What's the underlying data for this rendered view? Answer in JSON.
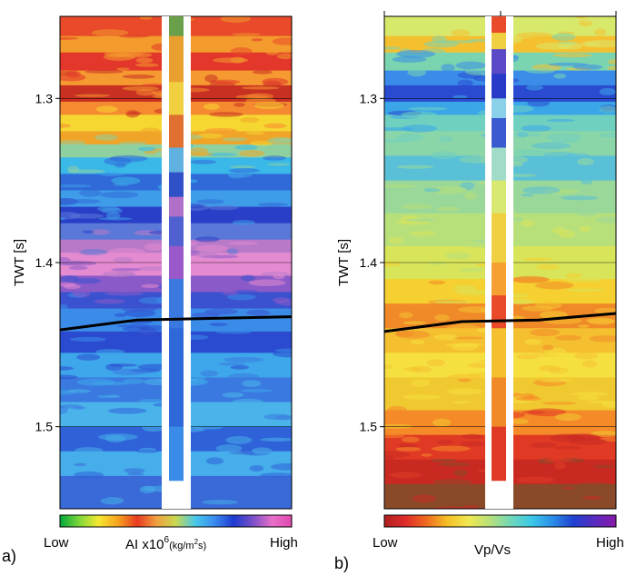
{
  "panels": [
    {
      "id": "a",
      "panel_label": "a)",
      "ylabel": "TWT [s]",
      "y_ticks": [
        1.3,
        1.4,
        1.5
      ],
      "y_range": [
        1.25,
        1.55
      ],
      "colorbar": {
        "low_label": "Low",
        "high_label": "High",
        "title_main": "AI x10",
        "title_sup": "6",
        "title_unit_open": "(kg/m",
        "title_unit_sup": "2",
        "title_unit_close": "s)",
        "stops": [
          "#00a83a",
          "#7fd63a",
          "#f5e830",
          "#f6a320",
          "#e83a20",
          "#f0a040",
          "#c8d850",
          "#48c8e8",
          "#3a8cf0",
          "#1e3ad0",
          "#7a50c8",
          "#e870c8",
          "#e048b0"
        ]
      },
      "horizon_twt": [
        1.441,
        1.435,
        1.434,
        1.433
      ],
      "well_bottom_twt": 1.533,
      "bands": [
        {
          "from": 1.25,
          "to": 1.262,
          "color": "#e84a2a"
        },
        {
          "from": 1.262,
          "to": 1.272,
          "color": "#f39b2c"
        },
        {
          "from": 1.272,
          "to": 1.283,
          "color": "#e2372a"
        },
        {
          "from": 1.283,
          "to": 1.292,
          "color": "#f59a30"
        },
        {
          "from": 1.292,
          "to": 1.302,
          "color": "#c83022"
        },
        {
          "from": 1.302,
          "to": 1.31,
          "color": "#f58a30"
        },
        {
          "from": 1.31,
          "to": 1.32,
          "color": "#f6d732"
        },
        {
          "from": 1.32,
          "to": 1.328,
          "color": "#f0a528"
        },
        {
          "from": 1.328,
          "to": 1.336,
          "color": "#8fd0a0"
        },
        {
          "from": 1.336,
          "to": 1.346,
          "color": "#3ab8e8"
        },
        {
          "from": 1.346,
          "to": 1.356,
          "color": "#2f6ad8"
        },
        {
          "from": 1.356,
          "to": 1.366,
          "color": "#3e9ce8"
        },
        {
          "from": 1.366,
          "to": 1.376,
          "color": "#2a3fc8"
        },
        {
          "from": 1.376,
          "to": 1.386,
          "color": "#5a78d8"
        },
        {
          "from": 1.386,
          "to": 1.394,
          "color": "#b87ac8"
        },
        {
          "from": 1.394,
          "to": 1.408,
          "color": "#e48ad0"
        },
        {
          "from": 1.408,
          "to": 1.418,
          "color": "#8a5ac8"
        },
        {
          "from": 1.418,
          "to": 1.428,
          "color": "#3a52d0"
        },
        {
          "from": 1.428,
          "to": 1.442,
          "color": "#3a8ce8"
        },
        {
          "from": 1.442,
          "to": 1.455,
          "color": "#2a4ad0"
        },
        {
          "from": 1.455,
          "to": 1.47,
          "color": "#3ea6ea"
        },
        {
          "from": 1.47,
          "to": 1.485,
          "color": "#3a7ae0"
        },
        {
          "from": 1.485,
          "to": 1.5,
          "color": "#4ab4ea"
        },
        {
          "from": 1.5,
          "to": 1.515,
          "color": "#2f62d8"
        },
        {
          "from": 1.515,
          "to": 1.53,
          "color": "#46aeea"
        },
        {
          "from": 1.53,
          "to": 1.55,
          "color": "#3a6ad8"
        }
      ],
      "well_strip": [
        {
          "from": 1.25,
          "to": 1.262,
          "color": "#6aa04a"
        },
        {
          "from": 1.262,
          "to": 1.29,
          "color": "#e8a030"
        },
        {
          "from": 1.29,
          "to": 1.31,
          "color": "#f0d040"
        },
        {
          "from": 1.31,
          "to": 1.33,
          "color": "#e07030"
        },
        {
          "from": 1.33,
          "to": 1.345,
          "color": "#60b0e0"
        },
        {
          "from": 1.345,
          "to": 1.36,
          "color": "#3050c8"
        },
        {
          "from": 1.36,
          "to": 1.372,
          "color": "#b070c8"
        },
        {
          "from": 1.372,
          "to": 1.39,
          "color": "#5060d0"
        },
        {
          "from": 1.39,
          "to": 1.41,
          "color": "#9a58c8"
        },
        {
          "from": 1.41,
          "to": 1.44,
          "color": "#3a7ae0"
        },
        {
          "from": 1.44,
          "to": 1.5,
          "color": "#2f68d8"
        },
        {
          "from": 1.5,
          "to": 1.533,
          "color": "#3a8ce8"
        }
      ]
    },
    {
      "id": "b",
      "panel_label": "b)",
      "ylabel": "TWT [s]",
      "y_ticks": [
        1.3,
        1.4,
        1.5
      ],
      "y_range": [
        1.25,
        1.55
      ],
      "colorbar": {
        "low_label": "Low",
        "high_label": "High",
        "title_main": "Vp/Vs",
        "stops": [
          "#b02020",
          "#e02a2a",
          "#f06a20",
          "#f5c028",
          "#f0e850",
          "#b8e07a",
          "#70d8b8",
          "#3ac8e8",
          "#2a8ce8",
          "#2040d0",
          "#5a2ac0",
          "#8a1aa8"
        ]
      },
      "horizon_twt": [
        1.442,
        1.436,
        1.435,
        1.431
      ],
      "well_bottom_twt": 1.533,
      "bands": [
        {
          "from": 1.25,
          "to": 1.262,
          "color": "#d8e86a"
        },
        {
          "from": 1.262,
          "to": 1.272,
          "color": "#f5c030"
        },
        {
          "from": 1.272,
          "to": 1.283,
          "color": "#7ad4b0"
        },
        {
          "from": 1.283,
          "to": 1.292,
          "color": "#3a8ce8"
        },
        {
          "from": 1.292,
          "to": 1.302,
          "color": "#2a4ad0"
        },
        {
          "from": 1.302,
          "to": 1.31,
          "color": "#3aa6e8"
        },
        {
          "from": 1.31,
          "to": 1.32,
          "color": "#70d0c0"
        },
        {
          "from": 1.32,
          "to": 1.335,
          "color": "#8ad6a8"
        },
        {
          "from": 1.335,
          "to": 1.35,
          "color": "#5ac0d8"
        },
        {
          "from": 1.35,
          "to": 1.37,
          "color": "#9ad89a"
        },
        {
          "from": 1.37,
          "to": 1.39,
          "color": "#b8e07a"
        },
        {
          "from": 1.39,
          "to": 1.41,
          "color": "#d8e45a"
        },
        {
          "from": 1.41,
          "to": 1.425,
          "color": "#f5d030"
        },
        {
          "from": 1.425,
          "to": 1.44,
          "color": "#f08a28"
        },
        {
          "from": 1.44,
          "to": 1.455,
          "color": "#f5c030"
        },
        {
          "from": 1.455,
          "to": 1.47,
          "color": "#f5e040"
        },
        {
          "from": 1.47,
          "to": 1.49,
          "color": "#f0c830"
        },
        {
          "from": 1.49,
          "to": 1.505,
          "color": "#f58a28"
        },
        {
          "from": 1.505,
          "to": 1.52,
          "color": "#e03a24"
        },
        {
          "from": 1.52,
          "to": 1.535,
          "color": "#c82a22"
        },
        {
          "from": 1.535,
          "to": 1.55,
          "color": "#8a4a2a"
        }
      ],
      "well_strip": [
        {
          "from": 1.25,
          "to": 1.26,
          "color": "#e84a2a"
        },
        {
          "from": 1.26,
          "to": 1.27,
          "color": "#f0d040"
        },
        {
          "from": 1.27,
          "to": 1.285,
          "color": "#5a4ac8"
        },
        {
          "from": 1.285,
          "to": 1.3,
          "color": "#2a3ac8"
        },
        {
          "from": 1.3,
          "to": 1.312,
          "color": "#8ad0e8"
        },
        {
          "from": 1.312,
          "to": 1.33,
          "color": "#3a5ad0"
        },
        {
          "from": 1.33,
          "to": 1.35,
          "color": "#a0dcc8"
        },
        {
          "from": 1.35,
          "to": 1.37,
          "color": "#d8e870"
        },
        {
          "from": 1.37,
          "to": 1.4,
          "color": "#f0d040"
        },
        {
          "from": 1.4,
          "to": 1.42,
          "color": "#f5a030"
        },
        {
          "from": 1.42,
          "to": 1.44,
          "color": "#e84a2a"
        },
        {
          "from": 1.44,
          "to": 1.47,
          "color": "#f5c030"
        },
        {
          "from": 1.47,
          "to": 1.5,
          "color": "#f08a28"
        },
        {
          "from": 1.5,
          "to": 1.533,
          "color": "#e03a24"
        }
      ]
    }
  ]
}
